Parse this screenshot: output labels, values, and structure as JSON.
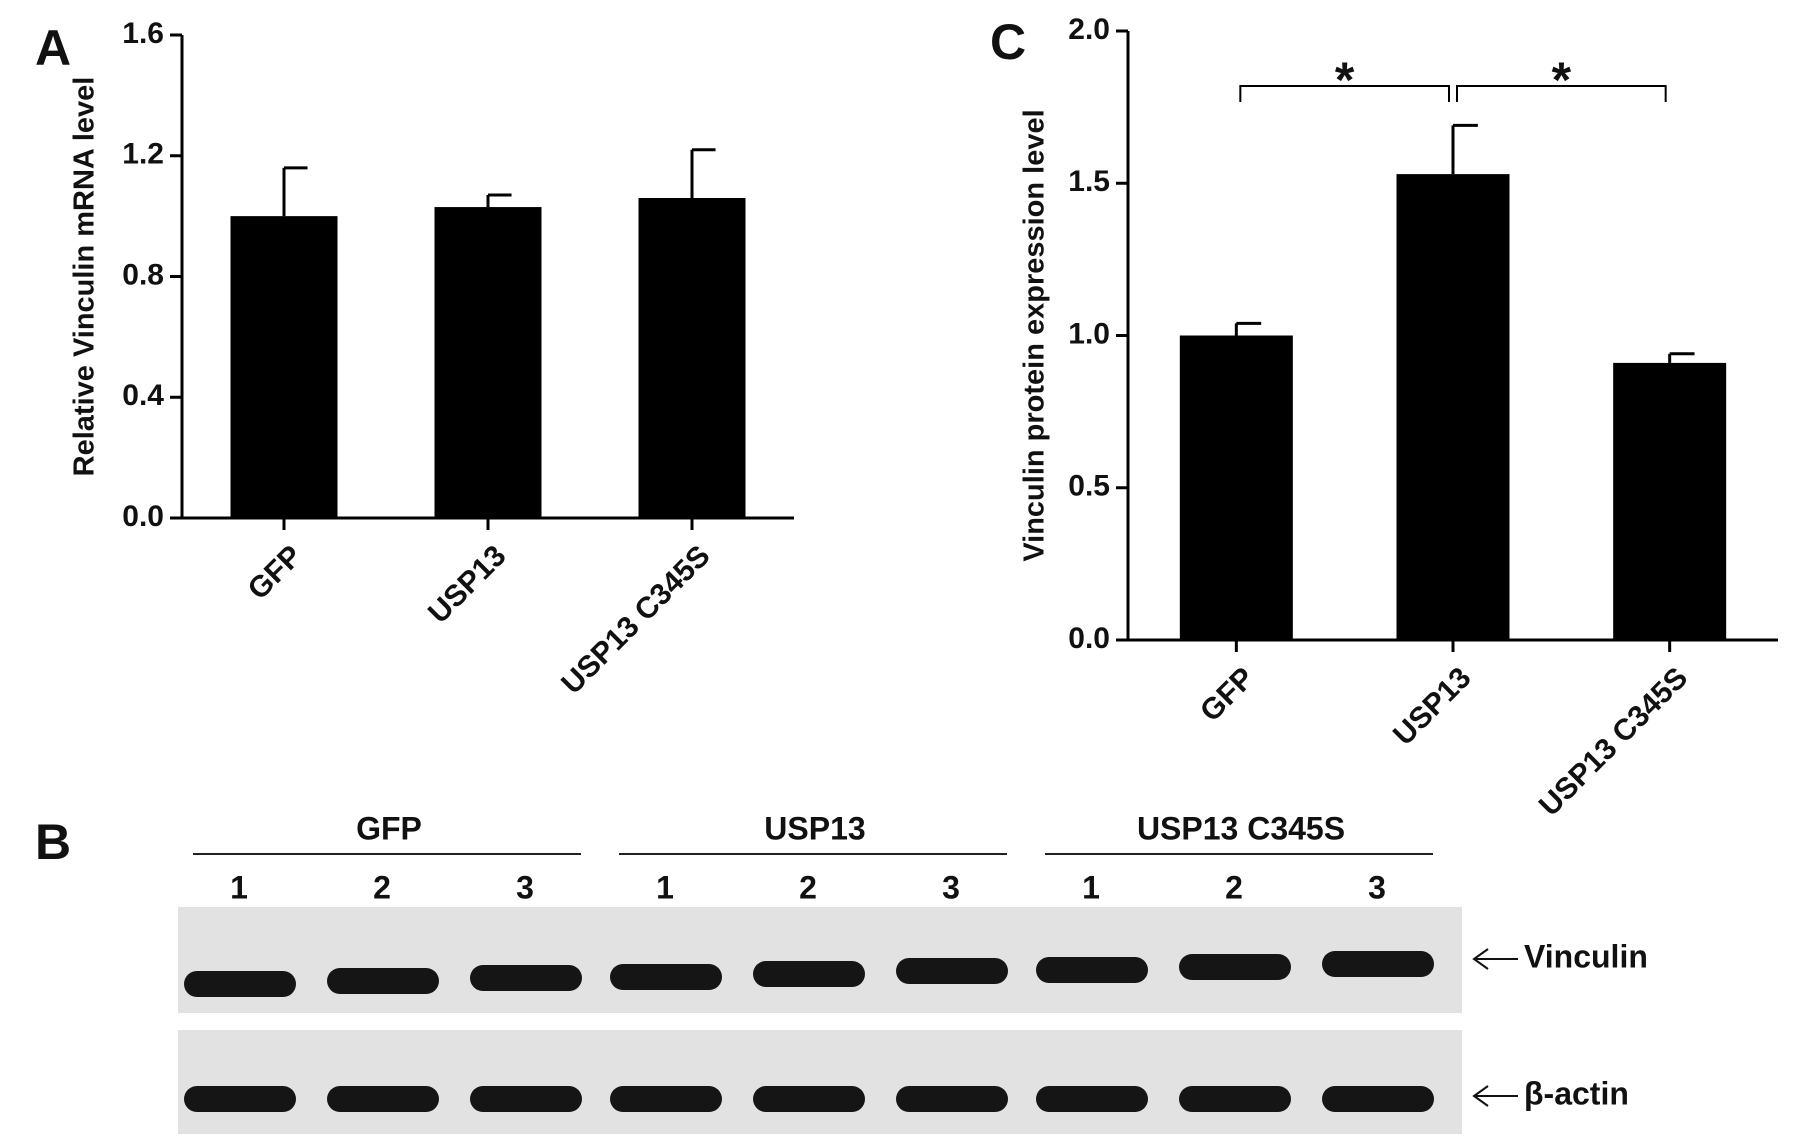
{
  "chart_data": [
    {
      "type": "bar",
      "panel": "A",
      "y_label": "Relative Vinculin mRNA level",
      "categories": [
        "GFP",
        "USP13",
        "USP13 C345S"
      ],
      "values": [
        1.0,
        1.03,
        1.06
      ],
      "errors": [
        0.16,
        0.04,
        0.16
      ],
      "color": "#000000",
      "ylim": [
        0,
        1.6
      ],
      "yticks": [
        {
          "value": 0,
          "label": "0.0"
        },
        0.4,
        0.8,
        1.2,
        1.6
      ]
    },
    {
      "type": "bar",
      "panel": "C",
      "y_label": "Vinculin protein expression level",
      "categories": [
        "GFP",
        "USP13",
        "USP13 C345S"
      ],
      "values": [
        1.0,
        1.53,
        0.91
      ],
      "errors": [
        0.04,
        0.16,
        0.03
      ],
      "color": "#000000",
      "ylim": [
        0,
        2
      ],
      "yticks": [
        {
          "value": 0,
          "label": "0.0"
        },
        0.5,
        {
          "value": 1,
          "label": "1.0"
        },
        1.5,
        {
          "value": 2,
          "label": "2.0"
        }
      ],
      "significance": [
        "*",
        "*"
      ]
    }
  ],
  "blot": {
    "panel": "B",
    "groups": [
      {
        "name": "GFP",
        "lanes": [
          "1",
          "2",
          "3"
        ]
      },
      {
        "name": "USP13",
        "lanes": [
          "1",
          "2",
          "3"
        ]
      },
      {
        "name": "USP13 C345S",
        "lanes": [
          "1",
          "2",
          "3"
        ]
      }
    ],
    "rows": [
      "Vinculin",
      "β-actin"
    ]
  }
}
